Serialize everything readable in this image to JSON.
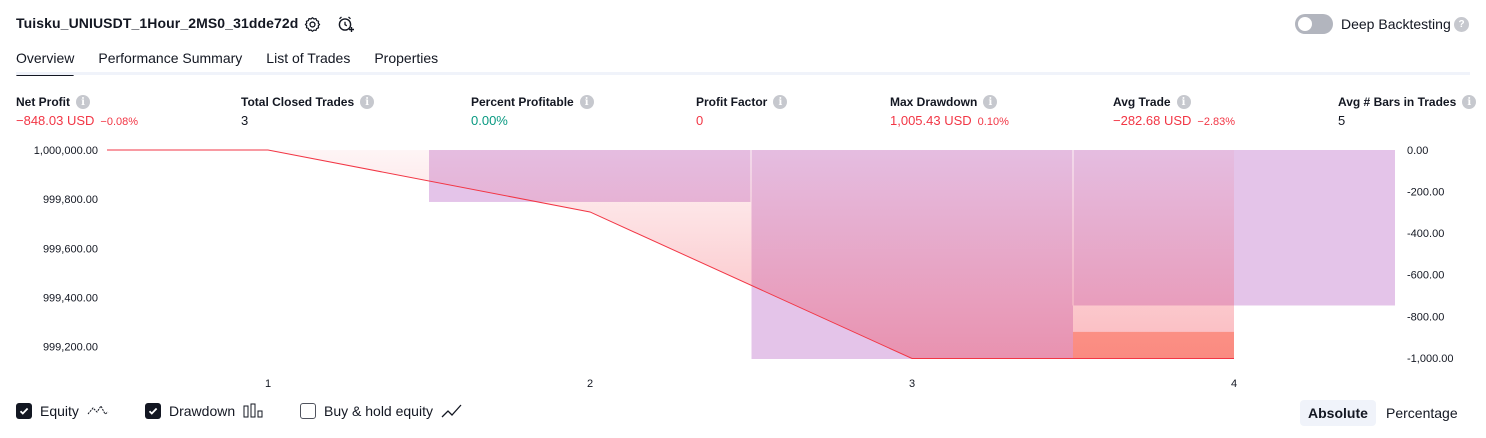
{
  "header": {
    "strategy_title": "Tuisku_UNIUSDT_1Hour_2MS0_31dde72d",
    "settings_icon": "gear-icon",
    "alert_icon": "add-alarm-icon",
    "deep_backtesting_label": "Deep Backtesting",
    "deep_backtesting_enabled": false,
    "help_glyph": "?"
  },
  "tabs": [
    {
      "label": "Overview",
      "active": true
    },
    {
      "label": "Performance Summary",
      "active": false
    },
    {
      "label": "List of Trades",
      "active": false
    },
    {
      "label": "Properties",
      "active": false
    }
  ],
  "metrics": {
    "net_profit": {
      "label": "Net Profit",
      "value": "−848.03 USD",
      "pct": "−0.08%"
    },
    "total_closed_trades": {
      "label": "Total Closed Trades",
      "value": "3"
    },
    "percent_profitable": {
      "label": "Percent Profitable",
      "value": "0.00%"
    },
    "profit_factor": {
      "label": "Profit Factor",
      "value": "0"
    },
    "max_drawdown": {
      "label": "Max Drawdown",
      "value": "1,005.43 USD",
      "pct": "0.10%"
    },
    "avg_trade": {
      "label": "Avg Trade",
      "value": "−282.68 USD",
      "pct": "−2.83%"
    },
    "avg_bars": {
      "label": "Avg # Bars in Trades",
      "value": "5"
    }
  },
  "chart_data": {
    "type": "line",
    "left_axis": {
      "ticks": [
        "1,000,000.00",
        "999,800.00",
        "999,600.00",
        "999,400.00",
        "999,200.00"
      ],
      "range": [
        999150,
        1000000
      ]
    },
    "right_axis": {
      "ticks": [
        "0.00",
        "-200.00",
        "-400.00",
        "-600.00",
        "-800.00",
        "-1,000.00"
      ],
      "range": [
        -1005.43,
        0
      ]
    },
    "x_ticks": [
      "1",
      "2",
      "3",
      "4"
    ],
    "equity": {
      "x": [
        0.5,
        1,
        2,
        3,
        4
      ],
      "y": [
        1000000,
        1000000,
        999748,
        999152,
        999152
      ]
    },
    "drawdown_bars": [
      {
        "from": 1.5,
        "to": 2.5,
        "value": -250
      },
      {
        "from": 2.5,
        "to": 3.5,
        "value": -1005.43
      },
      {
        "from": 3.5,
        "to": 4.5,
        "value": -748
      }
    ],
    "buy_hold_bars": [
      {
        "from": 3.5,
        "to": 4.0,
        "value": -1005.43,
        "top": -875
      }
    ],
    "colors": {
      "equity": "#f23645",
      "drawdown": "#ce93d8",
      "drawdown_fill": "#e1bee7",
      "buy_hold": "#ffab91"
    }
  },
  "legend": {
    "equity": {
      "label": "Equity",
      "checked": true,
      "icon": "equity-line-icon"
    },
    "drawdown": {
      "label": "Drawdown",
      "checked": true,
      "icon": "drawdown-bars-icon"
    },
    "buy_hold": {
      "label": "Buy & hold equity",
      "checked": false,
      "icon": "buy-hold-line-icon"
    }
  },
  "mode": {
    "absolute": "Absolute",
    "percentage": "Percentage",
    "selected": "Absolute"
  }
}
